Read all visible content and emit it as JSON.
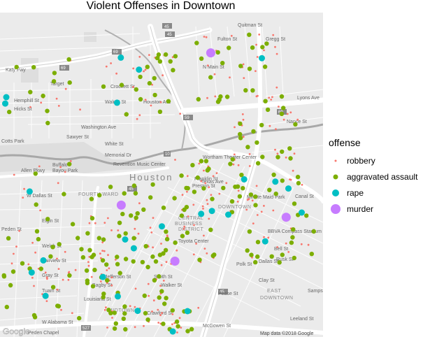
{
  "title": "Violent Offenses in Downtown",
  "legend": {
    "title": "offense",
    "items": [
      {
        "label": "robbery",
        "color": "#F8766D"
      },
      {
        "label": "aggravated assault",
        "color": "#7CAE00"
      },
      {
        "label": "rape",
        "color": "#00BFC4"
      },
      {
        "label": "murder",
        "color": "#C77CFF"
      }
    ]
  },
  "map": {
    "city_label": "Houston",
    "area_labels": [
      "FOURTH WARD",
      "DOWNTOWN",
      "CENTRAL BUSINESS DISTRICT",
      "MIDTOWN",
      "EAST DOWNTOWN"
    ],
    "street_labels": [
      "Katy Fwy",
      "Target",
      "Crockett St",
      "Washington Ave",
      "Memorial Dr",
      "Allen Pkwy",
      "Buffalo Bayou Park",
      "Revention Music Center",
      "Wortham Theater Center",
      "W Dallas St",
      "Welch St",
      "Fairview St",
      "W Alabama St",
      "Peden St",
      "Toyota Center",
      "Minute Maid Park",
      "BBVA Compass Stadium",
      "Nance St",
      "Lyons Ave",
      "Canal St",
      "Polk St",
      "Dallas St",
      "Bell St",
      "Clay St",
      "Leeland St",
      "Pease St",
      "Walker St",
      "Smith St",
      "Louisiana St",
      "Hicks St",
      "Hemphill St",
      "Houston Ave",
      "Sawyer St",
      "Quitman St",
      "Fulton St",
      "N Main St",
      "Gregg St",
      "Sampson St",
      "McGowen St",
      "Crawford St",
      "Bagby St",
      "Elgin St",
      "Gray St",
      "Rusk St",
      "Tuam St",
      "Preston St",
      "Franklin St",
      "Texas Ave",
      "Walnut St",
      "White St",
      "Cotts Park",
      "Jefferson St"
    ],
    "shields": [
      "45",
      "45",
      "45",
      "45",
      "69",
      "69",
      "59",
      "59",
      "10",
      "527"
    ],
    "attribution": "Map data ©2018 Google",
    "google_logo": "Google",
    "colors": {
      "background": "#ebebeb",
      "highway": "#ffffff",
      "water": "#a5a5a5",
      "park": "#d8d8d8"
    }
  }
}
